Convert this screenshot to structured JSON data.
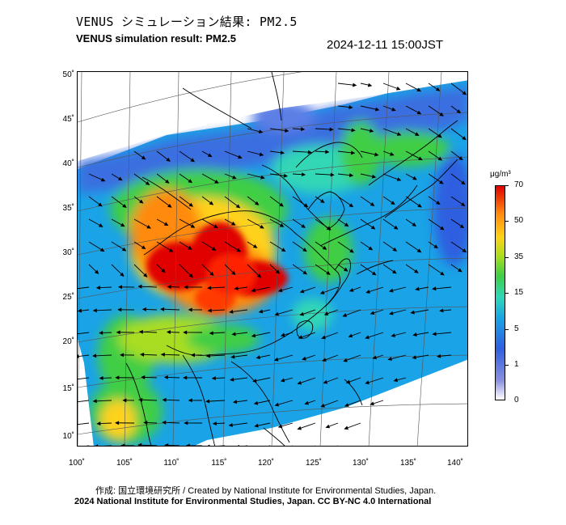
{
  "header": {
    "title_jp": "VENUS シミュレーション結果: PM2.5",
    "title_en": "VENUS simulation result: PM2.5",
    "timestamp": "2024-12-11 15:00JST"
  },
  "map": {
    "lat_ticks": [
      "50˚",
      "45˚",
      "40˚",
      "35˚",
      "30˚",
      "25˚",
      "20˚",
      "15˚",
      "10˚"
    ],
    "lon_ticks": [
      "100˚",
      "105˚",
      "110˚",
      "115˚",
      "120˚",
      "125˚",
      "130˚",
      "135˚",
      "140˚"
    ],
    "variable": "PM2.5",
    "overlay": "wind-vectors"
  },
  "colorbar": {
    "unit": "μg/m³",
    "labels": [
      "70",
      "50",
      "35",
      "15",
      "5",
      "1",
      "0"
    ],
    "colors": [
      "#e00000",
      "#ff8a10",
      "#ffd21a",
      "#a8dd20",
      "#3fce45",
      "#30d7b6",
      "#1aa3e6",
      "#2f5fe0",
      "#8a8fe0",
      "#ffffff"
    ]
  },
  "footer": {
    "credit": "作成: 国立環境研究所 / Created by National Institute for Environmental Studies, Japan.",
    "license": "2024 National Institute for Environmental Studies, Japan. CC BY-NC 4.0 International"
  }
}
